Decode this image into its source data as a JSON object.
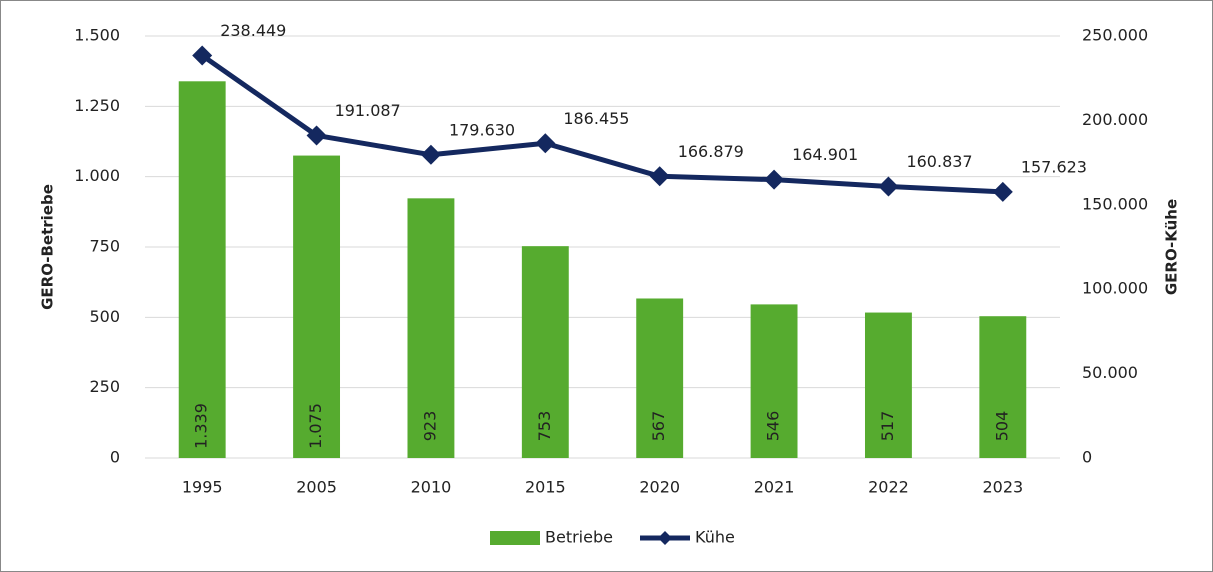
{
  "chart_data": {
    "type": "combo",
    "categories": [
      "1995",
      "2005",
      "2010",
      "2015",
      "2020",
      "2021",
      "2022",
      "2023"
    ],
    "series": [
      {
        "name": "Betriebe",
        "type": "bar",
        "color": "#56ab2f",
        "values": [
          1339,
          1075,
          923,
          753,
          567,
          546,
          517,
          504
        ],
        "value_labels": [
          "1.339",
          "1.075",
          "923",
          "753",
          "567",
          "546",
          "517",
          "504"
        ]
      },
      {
        "name": "Kühe",
        "type": "line",
        "axis": "y2",
        "color": "#14285f",
        "values": [
          238449,
          191087,
          179630,
          186455,
          166879,
          164901,
          160837,
          157623
        ],
        "value_labels": [
          "238.449",
          "191.087",
          "179.630",
          "186.455",
          "166.879",
          "164.901",
          "160.837",
          "157.623"
        ]
      }
    ],
    "y_label": "GERO-Betriebe",
    "y2_label": "GERO-Kühe",
    "ylim": [
      0,
      1500
    ],
    "yticks": [
      0,
      250,
      500,
      750,
      {
        "value": 1000,
        "label": "1.000"
      },
      {
        "value": 1250,
        "label": "1.250"
      },
      {
        "value": 1500,
        "label": "1.500"
      }
    ],
    "y2lim": [
      0,
      250000
    ],
    "y2ticks": [
      0,
      {
        "value": 50000,
        "label": "50.000"
      },
      {
        "value": 100000,
        "label": "100.000"
      },
      {
        "value": 150000,
        "label": "150.000"
      },
      {
        "value": 200000,
        "label": "200.000"
      },
      {
        "value": 250000,
        "label": "250.000"
      }
    ],
    "grid": true,
    "legend": "bottom"
  }
}
